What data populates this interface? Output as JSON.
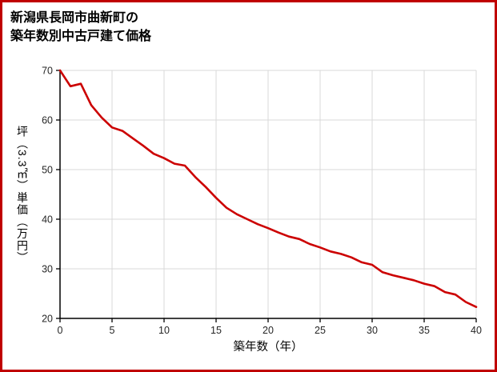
{
  "title": {
    "line1": "新潟県長岡市曲新町の",
    "line2": "築年数別中古戸建て価格"
  },
  "chart_data": {
    "type": "line",
    "title": "新潟県長岡市曲新町の築年数別中古戸建て価格",
    "xlabel": "築年数（年）",
    "ylabel": "坪（3.3㎡）単価（万円）",
    "x": [
      0,
      1,
      2,
      3,
      4,
      5,
      6,
      7,
      8,
      9,
      10,
      11,
      12,
      13,
      14,
      15,
      16,
      17,
      18,
      19,
      20,
      21,
      22,
      23,
      24,
      25,
      26,
      27,
      28,
      29,
      30,
      31,
      32,
      33,
      34,
      35,
      36,
      37,
      38,
      39,
      40
    ],
    "values": [
      70,
      66.8,
      67.3,
      63.0,
      60.5,
      58.5,
      57.8,
      56.3,
      54.8,
      53.2,
      52.3,
      51.2,
      50.8,
      48.5,
      46.5,
      44.3,
      42.3,
      41.0,
      40.0,
      39.0,
      38.2,
      37.3,
      36.5,
      36.0,
      35.0,
      34.3,
      33.5,
      33.0,
      32.3,
      31.3,
      30.8,
      29.3,
      28.7,
      28.2,
      27.7,
      27.0,
      26.5,
      25.3,
      24.8,
      23.3,
      22.3
    ],
    "xlim": [
      0,
      40
    ],
    "ylim": [
      20,
      70
    ],
    "x_ticks": [
      0,
      5,
      10,
      15,
      20,
      25,
      30,
      35,
      40
    ],
    "y_ticks": [
      20,
      30,
      40,
      50,
      60,
      70
    ],
    "grid": true,
    "legend": "none"
  },
  "colors": {
    "frame_border": "#c00000",
    "line": "#cc0000",
    "grid": "#d9d9d9",
    "axis": "#000000",
    "tick_label": "#262626"
  }
}
